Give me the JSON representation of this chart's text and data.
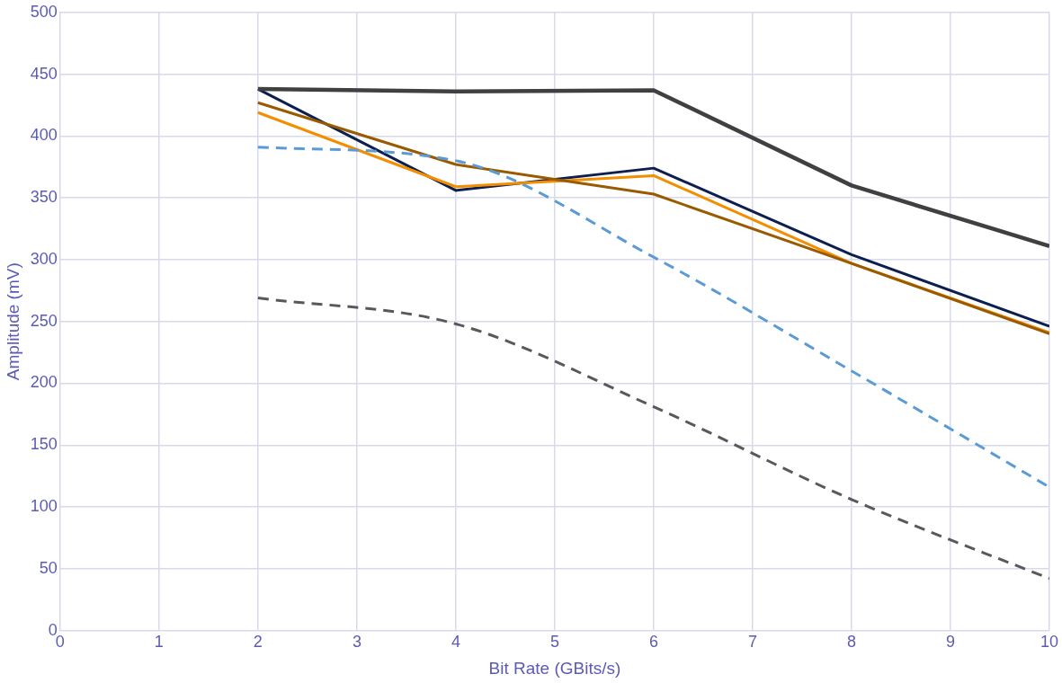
{
  "chart_data": {
    "type": "line",
    "xlabel": "Bit Rate (GBits/s)",
    "ylabel": "Amplitude (mV)",
    "x": [
      2,
      4,
      6,
      8,
      10
    ],
    "xlim": [
      0,
      10
    ],
    "xticks": [
      0,
      1,
      2,
      3,
      4,
      5,
      6,
      7,
      8,
      9,
      10
    ],
    "ylim": [
      0,
      500
    ],
    "yticks": [
      0,
      50,
      100,
      150,
      200,
      250,
      300,
      350,
      400,
      450,
      500
    ],
    "grid": true,
    "legend": false,
    "marker": "none",
    "series": [
      {
        "color": "#404040",
        "values": [
          438,
          436,
          437,
          360,
          311
        ],
        "line_style": "solid"
      },
      {
        "color": "#5b9bd5",
        "values": [
          391,
          380,
          302,
          210,
          116
        ],
        "line_style": "dashed"
      },
      {
        "color": "#595959",
        "values": [
          269,
          248,
          181,
          106,
          42
        ],
        "line_style": "dashed"
      },
      {
        "color": "#9a5a00",
        "values": [
          427,
          377,
          353,
          297,
          240
        ],
        "line_style": "solid"
      },
      {
        "color": "#f28e00",
        "values": [
          419,
          359,
          368,
          297,
          241
        ],
        "line_style": "solid"
      },
      {
        "color": "#0c1f4f",
        "values": [
          438,
          356,
          374,
          304,
          246
        ],
        "line_style": "solid"
      }
    ]
  }
}
